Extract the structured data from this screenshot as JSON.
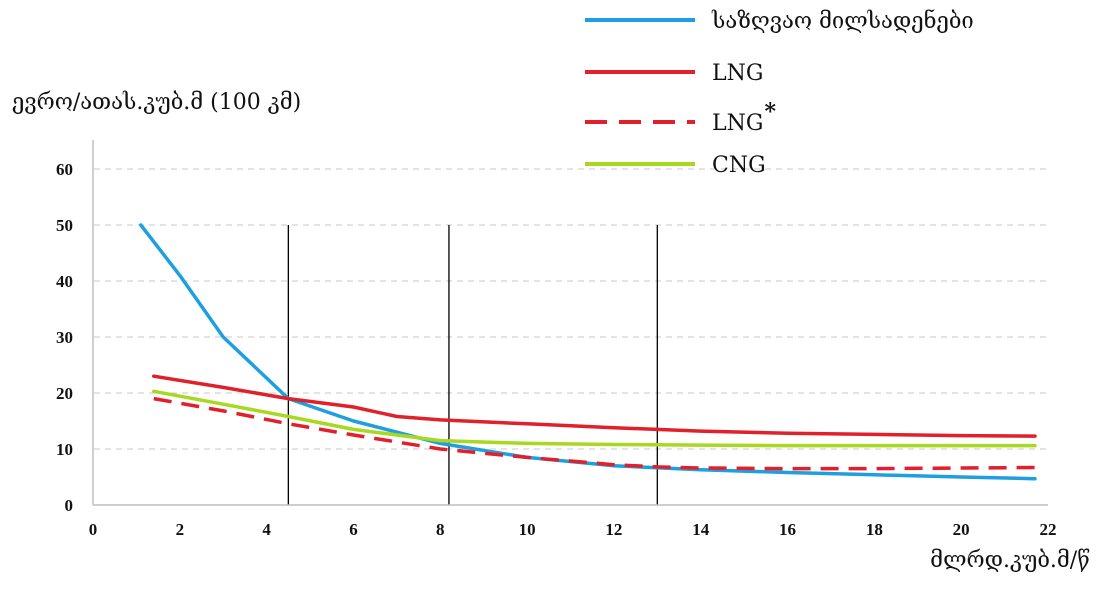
{
  "chart_data": {
    "type": "line",
    "ylabel": "ევრო/ათას.კუბ.მ (100 კმ)",
    "xlabel": "მლრდ.კუბ.მ/წ",
    "xlim": [
      0,
      22
    ],
    "ylim": [
      0,
      60
    ],
    "x_ticks": [
      "0",
      "2",
      "4",
      "6",
      "8",
      "10",
      "12",
      "14",
      "16",
      "18",
      "20",
      "22"
    ],
    "y_ticks": [
      "0",
      "10",
      "20",
      "30",
      "40",
      "50",
      "60"
    ],
    "grid": "horizontal dashed",
    "vertical_markers": [
      4.5,
      8.2,
      13.0
    ],
    "legend_position": "top-right",
    "series": [
      {
        "name": "საზღვაო მილსადენები",
        "color": "#1ea0e0",
        "style": "solid",
        "x": [
          1.1,
          2,
          3,
          4.5,
          6,
          8,
          10,
          12,
          14,
          16,
          18,
          20,
          21.7
        ],
        "y": [
          50,
          41,
          30,
          19,
          15,
          11,
          8.5,
          7,
          6.3,
          5.8,
          5.4,
          5.0,
          4.7
        ]
      },
      {
        "name": "LNG",
        "color": "#e0202a",
        "style": "solid",
        "x": [
          1.4,
          3,
          4.5,
          6,
          7,
          8,
          10,
          12,
          14,
          16,
          18,
          20,
          21.7
        ],
        "y": [
          23,
          21,
          19,
          17.5,
          15.8,
          15.2,
          14.5,
          13.8,
          13.2,
          12.8,
          12.6,
          12.4,
          12.3
        ]
      },
      {
        "name": "LNG",
        "color": "#e0202a",
        "style": "dashed",
        "x": [
          1.4,
          3,
          4.5,
          6,
          8,
          10,
          12,
          13,
          14,
          16,
          18,
          20,
          21.7
        ],
        "y": [
          19,
          16.8,
          14.5,
          12.5,
          10,
          8.5,
          7.2,
          6.8,
          6.6,
          6.5,
          6.5,
          6.6,
          6.7
        ]
      },
      {
        "name": "CNG",
        "color": "#a8d820",
        "style": "solid",
        "x": [
          1.4,
          3,
          4.5,
          6,
          8,
          10,
          12,
          14,
          16,
          18,
          20,
          21.7
        ],
        "y": [
          20.3,
          18,
          15.8,
          13.5,
          11.5,
          11,
          10.8,
          10.7,
          10.6,
          10.6,
          10.6,
          10.6
        ]
      }
    ],
    "legend_entries": [
      {
        "label": "საზღვაო მილსადენები",
        "sup": "",
        "color": "#1ea0e0",
        "style": "solid"
      },
      {
        "label": "LNG",
        "sup": "",
        "color": "#e0202a",
        "style": "solid"
      },
      {
        "label": "LNG",
        "sup": "*",
        "color": "#e0202a",
        "style": "dashed"
      },
      {
        "label": "CNG",
        "sup": "",
        "color": "#a8d820",
        "style": "solid"
      }
    ]
  }
}
